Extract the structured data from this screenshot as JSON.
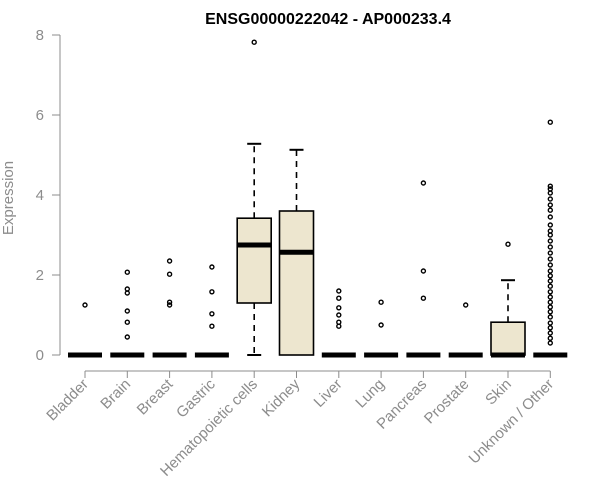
{
  "chart_data": {
    "type": "box",
    "title": "ENSG00000222042 - AP000233.4",
    "xlabel": "",
    "ylabel": "Expression",
    "ylim": [
      0,
      8
    ],
    "yticks": [
      0,
      2,
      4,
      6,
      8
    ],
    "grid": false,
    "legend": "none",
    "colors": {
      "box_fill": "#ede6cf",
      "stroke": "#000000",
      "axis": "#8c8c8c"
    },
    "categories": [
      "Bladder",
      "Brain",
      "Breast",
      "Gastric",
      "Hematopoietic cells",
      "Kidney",
      "Liver",
      "Lung",
      "Pancreas",
      "Prostate",
      "Skin",
      "Unknown / Other"
    ],
    "boxes": [
      {
        "category": "Bladder",
        "q1": 0,
        "median": 0,
        "q3": 0,
        "whisker_low": 0,
        "whisker_high": 0,
        "outliers": [
          1.25
        ]
      },
      {
        "category": "Brain",
        "q1": 0,
        "median": 0,
        "q3": 0,
        "whisker_low": 0,
        "whisker_high": 0,
        "outliers": [
          0.45,
          0.82,
          1.1,
          1.55,
          1.65,
          2.07
        ]
      },
      {
        "category": "Breast",
        "q1": 0,
        "median": 0,
        "q3": 0,
        "whisker_low": 0,
        "whisker_high": 0,
        "outliers": [
          1.25,
          1.32,
          2.02,
          2.35
        ]
      },
      {
        "category": "Gastric",
        "q1": 0,
        "median": 0,
        "q3": 0,
        "whisker_low": 0,
        "whisker_high": 0,
        "outliers": [
          0.72,
          1.03,
          1.58,
          2.2
        ]
      },
      {
        "category": "Hematopoietic cells",
        "q1": 1.3,
        "median": 2.75,
        "q3": 3.42,
        "whisker_low": 0,
        "whisker_high": 5.28,
        "outliers": [
          7.82
        ]
      },
      {
        "category": "Kidney",
        "q1": 0,
        "median": 2.57,
        "q3": 3.6,
        "whisker_low": 0,
        "whisker_high": 5.13,
        "outliers": []
      },
      {
        "category": "Liver",
        "q1": 0,
        "median": 0,
        "q3": 0,
        "whisker_low": 0,
        "whisker_high": 0,
        "outliers": [
          0.72,
          0.82,
          1.0,
          1.18,
          1.42,
          1.6
        ]
      },
      {
        "category": "Lung",
        "q1": 0,
        "median": 0,
        "q3": 0,
        "whisker_low": 0,
        "whisker_high": 0,
        "outliers": [
          0.75,
          1.32
        ]
      },
      {
        "category": "Pancreas",
        "q1": 0,
        "median": 0,
        "q3": 0,
        "whisker_low": 0,
        "whisker_high": 0,
        "outliers": [
          1.42,
          2.1,
          4.3
        ]
      },
      {
        "category": "Prostate",
        "q1": 0,
        "median": 0,
        "q3": 0,
        "whisker_low": 0,
        "whisker_high": 0,
        "outliers": [
          1.25
        ]
      },
      {
        "category": "Skin",
        "q1": 0,
        "median": 0,
        "q3": 0.82,
        "whisker_low": 0,
        "whisker_high": 1.87,
        "outliers": [
          2.77
        ]
      },
      {
        "category": "Unknown / Other",
        "q1": 0,
        "median": 0,
        "q3": 0,
        "whisker_low": 0,
        "whisker_high": 0,
        "outliers": [
          0.3,
          0.42,
          0.55,
          0.68,
          0.8,
          0.95,
          1.08,
          1.2,
          1.32,
          1.45,
          1.58,
          1.72,
          1.85,
          1.98,
          2.1,
          2.25,
          2.4,
          2.55,
          2.7,
          2.85,
          3.0,
          3.1,
          3.25,
          3.45,
          3.62,
          3.75,
          3.9,
          4.05,
          4.15,
          4.22,
          5.82
        ]
      }
    ]
  }
}
